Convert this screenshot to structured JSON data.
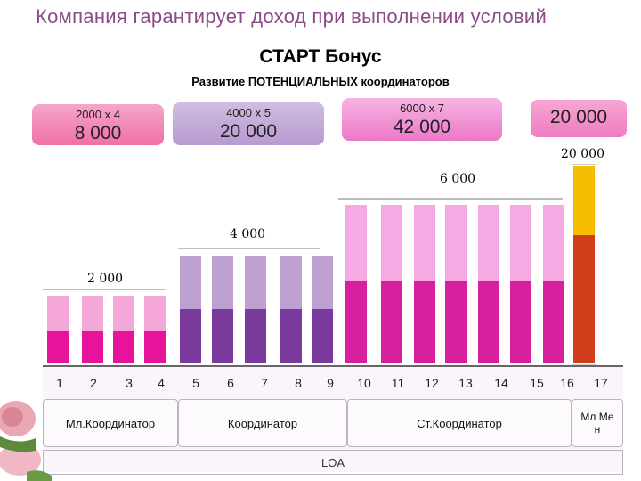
{
  "header": {
    "title": "Компания гарантирует доход при выполнении условий",
    "subtitle": "СТАРТ Бонус",
    "caption": "Развитие ПОТЕНЦИАЛЬНЫХ координаторов"
  },
  "pills": [
    {
      "formula": "2000 х 4",
      "value": "8 000",
      "color": "#f06fa8"
    },
    {
      "formula": "4000 х 5",
      "value": "20 000",
      "color": "#b79ad0"
    },
    {
      "formula": "6000 х 7",
      "value": "42 000",
      "color": "#ec78c9"
    },
    {
      "formula": "",
      "value": "20 000",
      "color": "#f07cbf"
    }
  ],
  "level_labels": [
    "2 000",
    "4 000",
    "6 000",
    "20 000"
  ],
  "tiers": [
    {
      "label": "Мл.Координатор"
    },
    {
      "label": "Координатор"
    },
    {
      "label": "Ст.Координатор"
    },
    {
      "label": "Мл Ме н"
    }
  ],
  "loa_label": "LOA",
  "chart_data": {
    "type": "bar",
    "categories": [
      "1",
      "2",
      "3",
      "4",
      "5",
      "6",
      "7",
      "8",
      "9",
      "10",
      "11",
      "12",
      "13",
      "14",
      "15",
      "16",
      "17"
    ],
    "series": [
      {
        "values": [
          2000,
          2000,
          2000,
          2000,
          4000,
          4000,
          4000,
          4000,
          4000,
          6000,
          6000,
          6000,
          6000,
          6000,
          6000,
          6000,
          20000
        ]
      }
    ],
    "colors": {
      "tier1_light": "#f5a7d8",
      "tier1_dark": "#e6149a",
      "tier2_light": "#bfa0d2",
      "tier2_dark": "#7a3a9c",
      "tier3_light": "#f7a9e3",
      "tier3_dark": "#d6209f",
      "tier4_top": "#f6be00",
      "tier4_bottom": "#d13c1b"
    }
  }
}
